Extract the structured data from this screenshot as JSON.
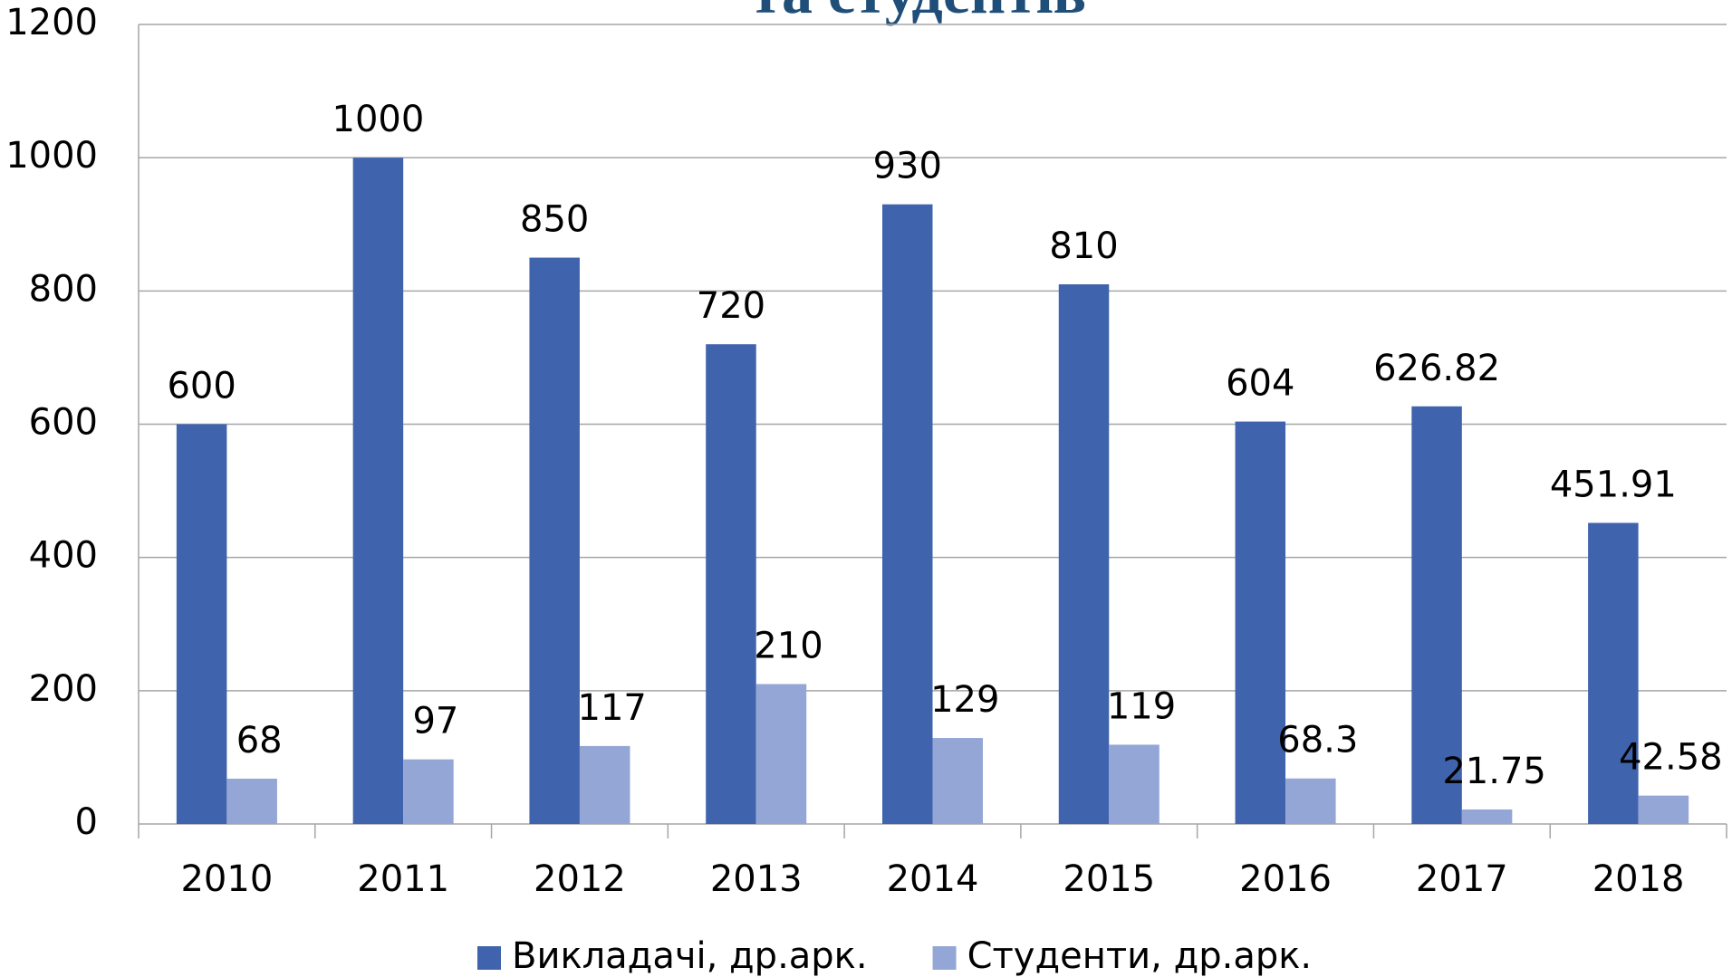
{
  "chart_data": {
    "type": "bar",
    "title": "та студентів",
    "categories": [
      "2010",
      "2011",
      "2012",
      "2013",
      "2014",
      "2015",
      "2016",
      "2017",
      "2018"
    ],
    "series": [
      {
        "name": "Викладачі, др.арк.",
        "color": "#3f64ad",
        "values": [
          600,
          1000,
          850,
          720,
          930,
          810,
          604,
          626.82,
          451.91
        ]
      },
      {
        "name": "Студенти, др.арк.",
        "color": "#94a6d6",
        "values": [
          68,
          97,
          117,
          210,
          129,
          119,
          68.3,
          21.75,
          42.58
        ]
      }
    ],
    "ylim": [
      0,
      1200
    ],
    "yticks": [
      0,
      200,
      400,
      600,
      800,
      1000,
      1200
    ],
    "grid": true,
    "legend": "bottom"
  }
}
